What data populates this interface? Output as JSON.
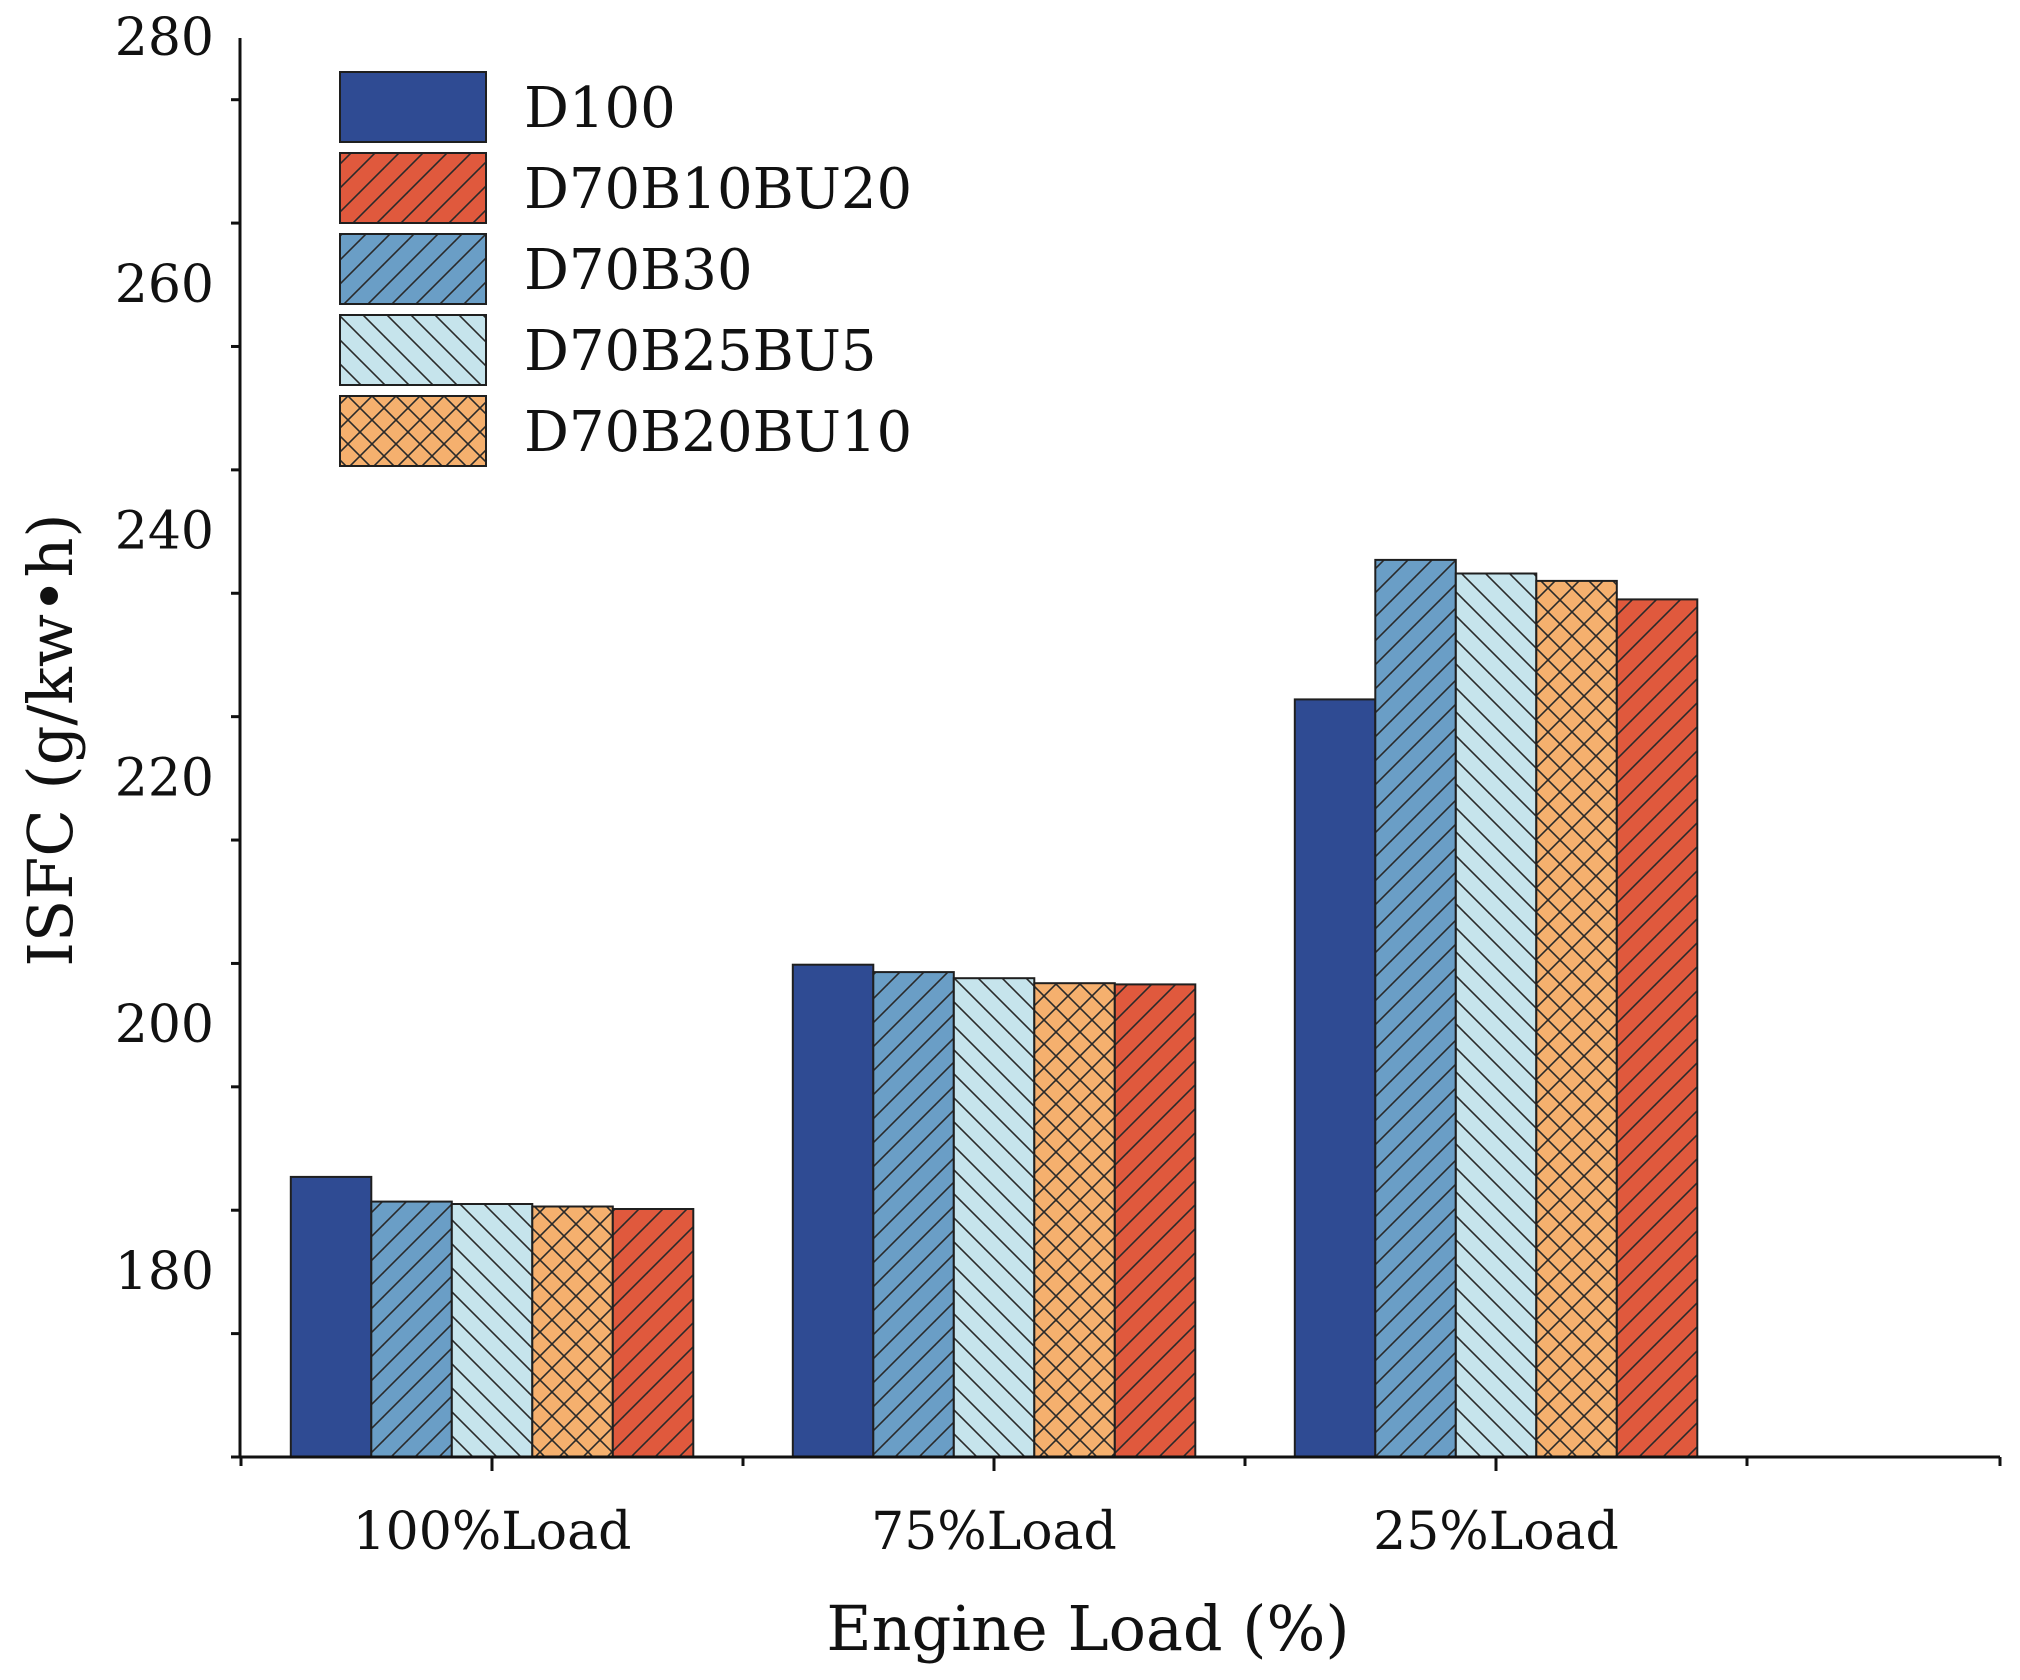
{
  "chart_data": {
    "type": "bar",
    "title": "",
    "xlabel": "Engine Load (%)",
    "ylabel": "ISFC (g/kw•h)",
    "categories": [
      "100%Load",
      "75%Load",
      "25%Load"
    ],
    "ylim": [
      165,
      280
    ],
    "yticks": [
      180,
      200,
      220,
      240,
      260,
      280
    ],
    "grid": false,
    "legend_position": "top-left",
    "legend_order": [
      "D100",
      "D70B10BU20",
      "D70B30",
      "D70B25BU5",
      "D70B20BU10"
    ],
    "series": [
      {
        "name": "D100",
        "color": "#2f4b93",
        "pattern": "solid",
        "values": [
          187.7,
          204.9,
          226.4
        ]
      },
      {
        "name": "D70B30",
        "color": "#6a9ec6",
        "pattern": "diag-right",
        "values": [
          185.7,
          204.3,
          237.7
        ]
      },
      {
        "name": "D70B25BU5",
        "color": "#c6e4ec",
        "pattern": "diag-left",
        "values": [
          185.5,
          203.8,
          236.6
        ]
      },
      {
        "name": "D70B20BU10",
        "color": "#f5b06e",
        "pattern": "cross",
        "values": [
          185.3,
          203.4,
          236.0
        ]
      },
      {
        "name": "D70B10BU20",
        "color": "#e0593d",
        "pattern": "diag-right",
        "values": [
          185.1,
          203.3,
          234.5
        ]
      }
    ]
  }
}
